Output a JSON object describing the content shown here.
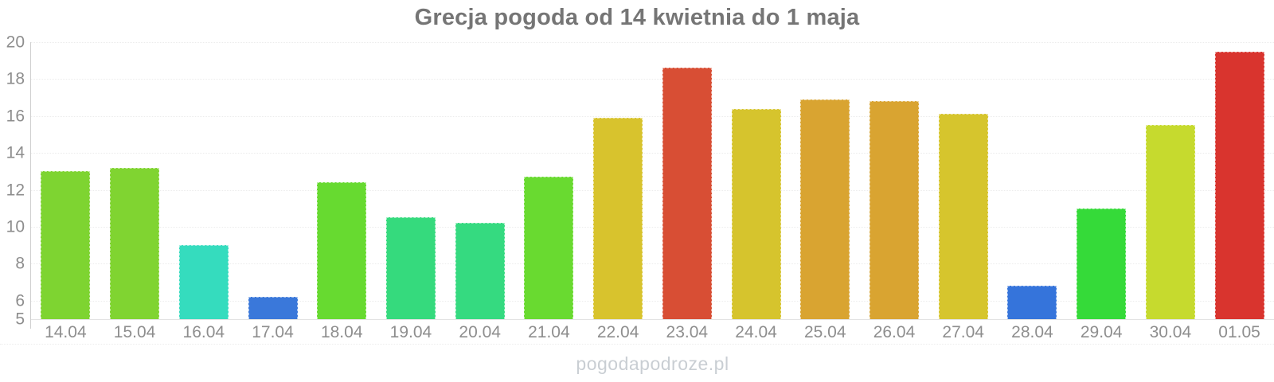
{
  "title": "Grecja pogoda od 14 kwietnia do 1 maja",
  "watermark": "pogodapodroze.pl",
  "axis": {
    "y_ticks": [
      20,
      18,
      16,
      14,
      12,
      10,
      8,
      6,
      5
    ],
    "grid_values": [
      20,
      18,
      16,
      14,
      12,
      10,
      8,
      6
    ]
  },
  "chart_data": {
    "type": "bar",
    "title": "Grecja pogoda od 14 kwietnia do 1 maja",
    "xlabel": "",
    "ylabel": "",
    "ylim": [
      5,
      20
    ],
    "grid": "horizontal-dotted",
    "legend": "none",
    "categories": [
      "14.04",
      "15.04",
      "16.04",
      "17.04",
      "18.04",
      "19.04",
      "20.04",
      "21.04",
      "22.04",
      "23.04",
      "24.04",
      "25.04",
      "26.04",
      "27.04",
      "28.04",
      "29.04",
      "30.04",
      "01.05"
    ],
    "values": [
      13.0,
      13.2,
      9.0,
      6.2,
      12.4,
      10.5,
      10.2,
      12.7,
      15.9,
      18.6,
      16.4,
      16.9,
      16.8,
      16.1,
      6.8,
      11.0,
      15.5,
      19.5
    ],
    "colors": [
      "#7ed431",
      "#80d431",
      "#35dcbe",
      "#3a78da",
      "#67da30",
      "#35da7d",
      "#35da80",
      "#69da30",
      "#d8c32d",
      "#d84e34",
      "#d6c42d",
      "#d9a431",
      "#d9a431",
      "#d6c52d",
      "#3574db",
      "#35da39",
      "#c6da2e",
      "#d9342e"
    ]
  }
}
